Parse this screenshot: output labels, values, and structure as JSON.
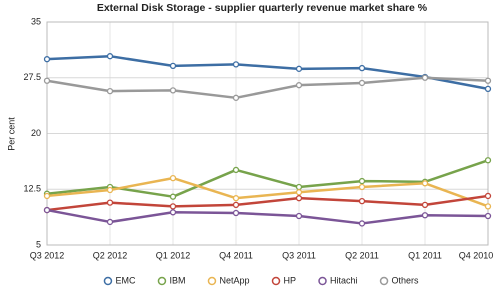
{
  "chart_data": {
    "type": "line",
    "title": "External Disk Storage - supplier quarterly revenue market share %",
    "y_label": "Per cent",
    "categories": [
      "Q3 2012",
      "Q2 2012",
      "Q1 2012",
      "Q4 2011",
      "Q3 2011",
      "Q2 2011",
      "Q1 2011",
      "Q4 2010"
    ],
    "series": [
      {
        "name": "EMC",
        "color": "#3d6ea4",
        "values": [
          30.0,
          30.4,
          29.1,
          29.3,
          28.7,
          28.8,
          27.6,
          26.0
        ]
      },
      {
        "name": "IBM",
        "color": "#77a34b",
        "values": [
          11.9,
          12.8,
          11.5,
          15.1,
          12.8,
          13.6,
          13.5,
          16.4
        ]
      },
      {
        "name": "NetApp",
        "color": "#e9b552",
        "values": [
          11.6,
          12.4,
          14.0,
          11.3,
          12.1,
          12.8,
          13.3,
          10.2
        ]
      },
      {
        "name": "HP",
        "color": "#c2453a",
        "values": [
          9.7,
          10.7,
          10.2,
          10.4,
          11.3,
          10.9,
          10.4,
          11.6
        ]
      },
      {
        "name": "Hitachi",
        "color": "#7b5597",
        "values": [
          9.7,
          8.1,
          9.4,
          9.3,
          8.9,
          7.9,
          9.0,
          8.9
        ]
      },
      {
        "name": "Others",
        "color": "#999999",
        "values": [
          27.1,
          25.7,
          25.8,
          24.8,
          26.5,
          26.8,
          27.5,
          27.1
        ]
      }
    ],
    "ylim": [
      5,
      35
    ],
    "yticks": [
      5,
      12.5,
      20,
      27.5,
      35
    ],
    "grid": true,
    "legend": "bottom"
  }
}
